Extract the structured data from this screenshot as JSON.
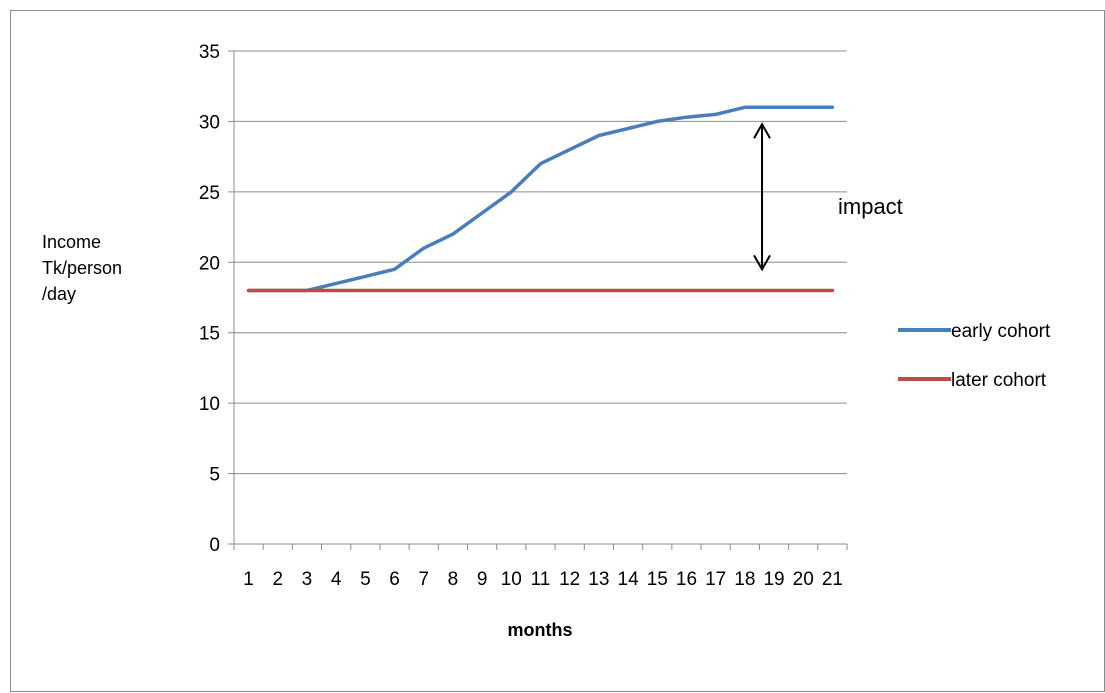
{
  "chart_data": {
    "type": "line",
    "title": "",
    "ylabel_lines": [
      "Income",
      "Tk/person",
      "/day"
    ],
    "xlabel": "months",
    "categories": [
      "1",
      "2",
      "3",
      "4",
      "5",
      "6",
      "7",
      "8",
      "9",
      "10",
      "11",
      "12",
      "13",
      "14",
      "15",
      "16",
      "17",
      "18",
      "19",
      "20",
      "21"
    ],
    "ylim": [
      0,
      35
    ],
    "yticks": [
      0,
      5,
      10,
      15,
      20,
      25,
      30,
      35
    ],
    "grid": "horizontal",
    "legend_position": "right",
    "series": [
      {
        "name": "early cohort",
        "color": "#4a7ebb",
        "values": [
          18,
          18,
          18,
          18.5,
          19,
          19.5,
          21,
          22,
          23.5,
          25,
          27,
          28,
          29,
          29.5,
          30,
          30.3,
          30.5,
          31,
          31,
          31,
          31
        ]
      },
      {
        "name": "later cohort",
        "color": "#be4b48",
        "values": [
          18,
          18,
          18,
          18,
          18,
          18,
          18,
          18,
          18,
          18,
          18,
          18,
          18,
          18,
          18,
          18,
          18,
          18,
          18,
          18,
          18
        ]
      }
    ],
    "annotation": {
      "text": "impact",
      "x_category": "19",
      "y_from": 19.5,
      "y_to": 29.8
    }
  }
}
